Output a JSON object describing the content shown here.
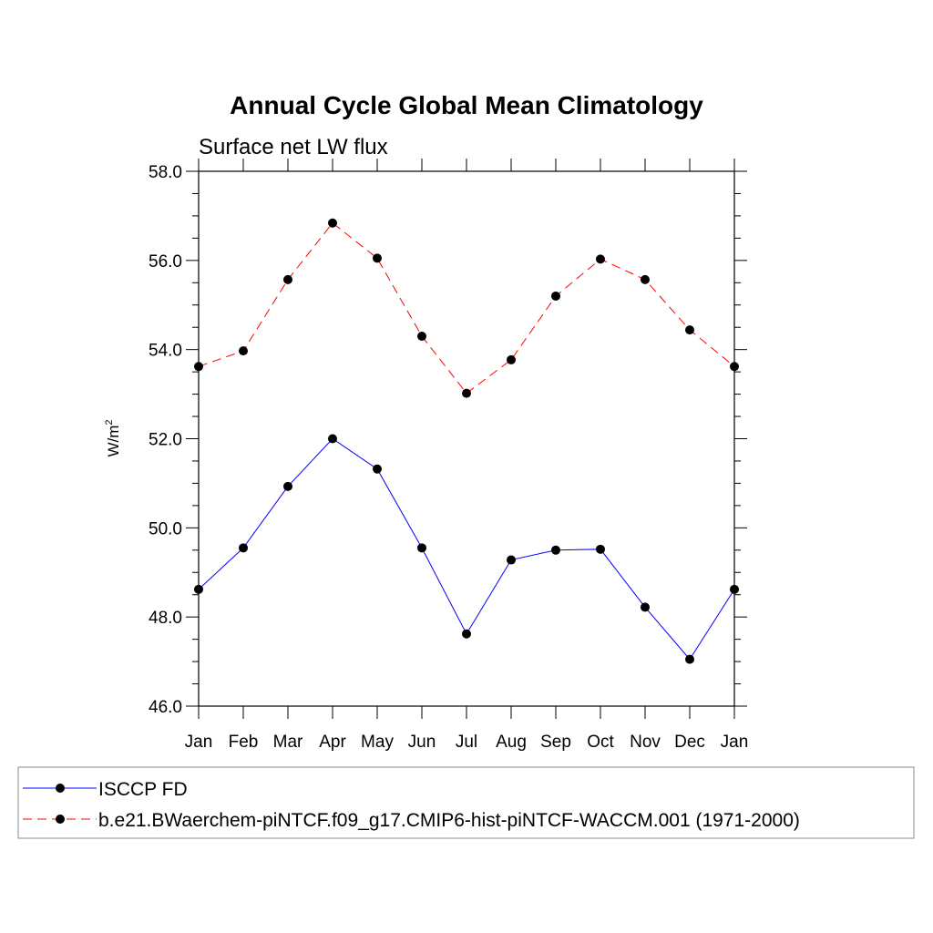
{
  "chart_data": {
    "type": "line",
    "title": "Annual Cycle Global Mean Climatology",
    "subtitle": "Surface net LW flux",
    "ylabel": "W/m",
    "ylabel_superscript": "2",
    "xlabel": "",
    "categories": [
      "Jan",
      "Feb",
      "Mar",
      "Apr",
      "May",
      "Jun",
      "Jul",
      "Aug",
      "Sep",
      "Oct",
      "Nov",
      "Dec",
      "Jan"
    ],
    "ylim": [
      46.0,
      58.0
    ],
    "y_ticks": [
      "46.0",
      "48.0",
      "50.0",
      "52.0",
      "54.0",
      "56.0",
      "58.0"
    ],
    "grid": false,
    "legend_position": "bottom",
    "series": [
      {
        "name": "ISCCP FD",
        "color": "#0000ff",
        "line_style": "solid",
        "marker": "filled-circle",
        "values": [
          48.62,
          49.55,
          50.93,
          52.0,
          51.32,
          49.55,
          47.62,
          49.28,
          49.5,
          49.52,
          48.22,
          47.05,
          48.62
        ]
      },
      {
        "name": "b.e21.BWaerchem-piNTCF.f09_g17.CMIP6-hist-piNTCF-WACCM.001 (1971-2000)",
        "color": "#ff0000",
        "line_style": "dashed",
        "marker": "filled-circle",
        "values": [
          53.62,
          53.97,
          55.57,
          56.84,
          56.05,
          54.3,
          53.02,
          53.77,
          55.2,
          56.03,
          55.57,
          54.44,
          53.62
        ]
      }
    ]
  }
}
